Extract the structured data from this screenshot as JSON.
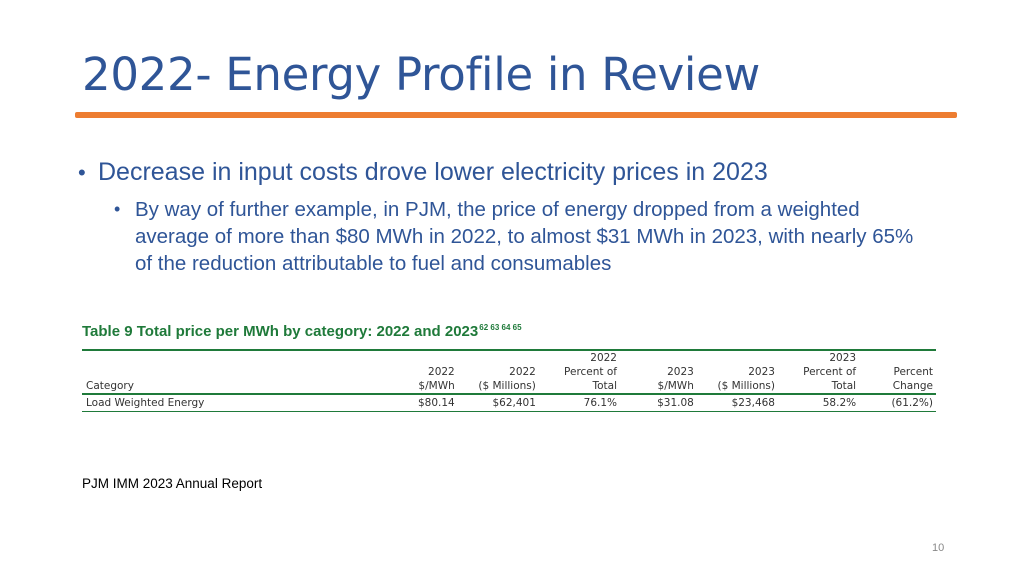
{
  "slide": {
    "title": "2022- Energy Profile in Review",
    "accent_color": "#ed7d31",
    "title_color": "#2f5597",
    "bullet1": "Decrease in input costs drove lower electricity prices in 2023",
    "bullet2": "By way of further example, in PJM, the price of energy dropped from a weighted average of more than $80 MWh in 2022, to almost $31 MWh in 2023, with nearly 65% of the reduction attributable to fuel and consumables",
    "bullet_glyph": "•",
    "source": "PJM IMM 2023 Annual Report",
    "page_number": "10"
  },
  "table": {
    "title": "Table 9 Total price per MWh by category: 2022 and 2023",
    "footnotes": "62 63 64 65",
    "headers": {
      "category": "Category",
      "c1": [
        "",
        "2022",
        "$/MWh"
      ],
      "c2": [
        "",
        "2022",
        "($ Millions)"
      ],
      "c3": [
        "2022",
        "Percent of",
        "Total"
      ],
      "c4": [
        "",
        "2023",
        "$/MWh"
      ],
      "c5": [
        "",
        "2023",
        "($ Millions)"
      ],
      "c6": [
        "2023",
        "Percent of",
        "Total"
      ],
      "c7": [
        "",
        "Percent",
        "Change"
      ]
    },
    "rows": [
      [
        "Load Weighted Energy",
        "$80.14",
        "$62,401",
        "76.1%",
        "$31.08",
        "$23,468",
        "58.2%",
        "(61.2%)"
      ]
    ]
  }
}
